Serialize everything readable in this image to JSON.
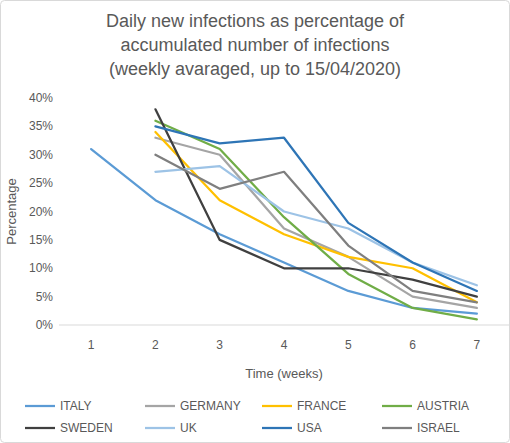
{
  "chart_data": {
    "type": "line",
    "title": [
      "Daily new infections as percentage of",
      "accumulated number of infections",
      "(weekly avaraged, up to 15/04/2020)"
    ],
    "x_label": "Time (weeks)",
    "y_label": "Percentage",
    "x": [
      1,
      2,
      3,
      4,
      5,
      6,
      7
    ],
    "xlim": [
      0.5,
      7.5
    ],
    "xticks": [
      1,
      2,
      3,
      4,
      5,
      6,
      7
    ],
    "ylim": [
      0,
      40
    ],
    "yticks": [
      {
        "value": 0,
        "label": "0%"
      },
      {
        "value": 5,
        "label": "5%"
      },
      {
        "value": 10,
        "label": "10%"
      },
      {
        "value": 15,
        "label": "15%"
      },
      {
        "value": 20,
        "label": "20%"
      },
      {
        "value": 25,
        "label": "25%"
      },
      {
        "value": 30,
        "label": "30%"
      },
      {
        "value": 35,
        "label": "35%"
      },
      {
        "value": 40,
        "label": "40%"
      }
    ],
    "grid": false,
    "legend": "bottom",
    "series": [
      {
        "name": "ITALY",
        "color": "#5b9bd5",
        "values": [
          31,
          22,
          16,
          11,
          6,
          3,
          2
        ]
      },
      {
        "name": "GERMANY",
        "color": "#a5a5a5",
        "values": [
          null,
          33,
          30,
          17,
          12,
          5,
          3
        ]
      },
      {
        "name": "FRANCE",
        "color": "#ffc000",
        "values": [
          null,
          34,
          22,
          16,
          12,
          10,
          4
        ]
      },
      {
        "name": "AUSTRIA",
        "color": "#70ad47",
        "values": [
          null,
          36,
          31,
          19,
          9,
          3,
          1
        ]
      },
      {
        "name": "SWEDEN",
        "color": "#404040",
        "values": [
          null,
          38,
          15,
          10,
          10,
          8,
          5
        ]
      },
      {
        "name": "UK",
        "color": "#9dc3e6",
        "values": [
          null,
          27,
          28,
          20,
          17,
          11,
          7
        ]
      },
      {
        "name": "USA",
        "color": "#2e75b6",
        "values": [
          null,
          35,
          32,
          33,
          18,
          11,
          6
        ]
      },
      {
        "name": "ISRAEL",
        "color": "#7f7f7f",
        "values": [
          null,
          30,
          24,
          27,
          14,
          6,
          4
        ]
      }
    ]
  }
}
